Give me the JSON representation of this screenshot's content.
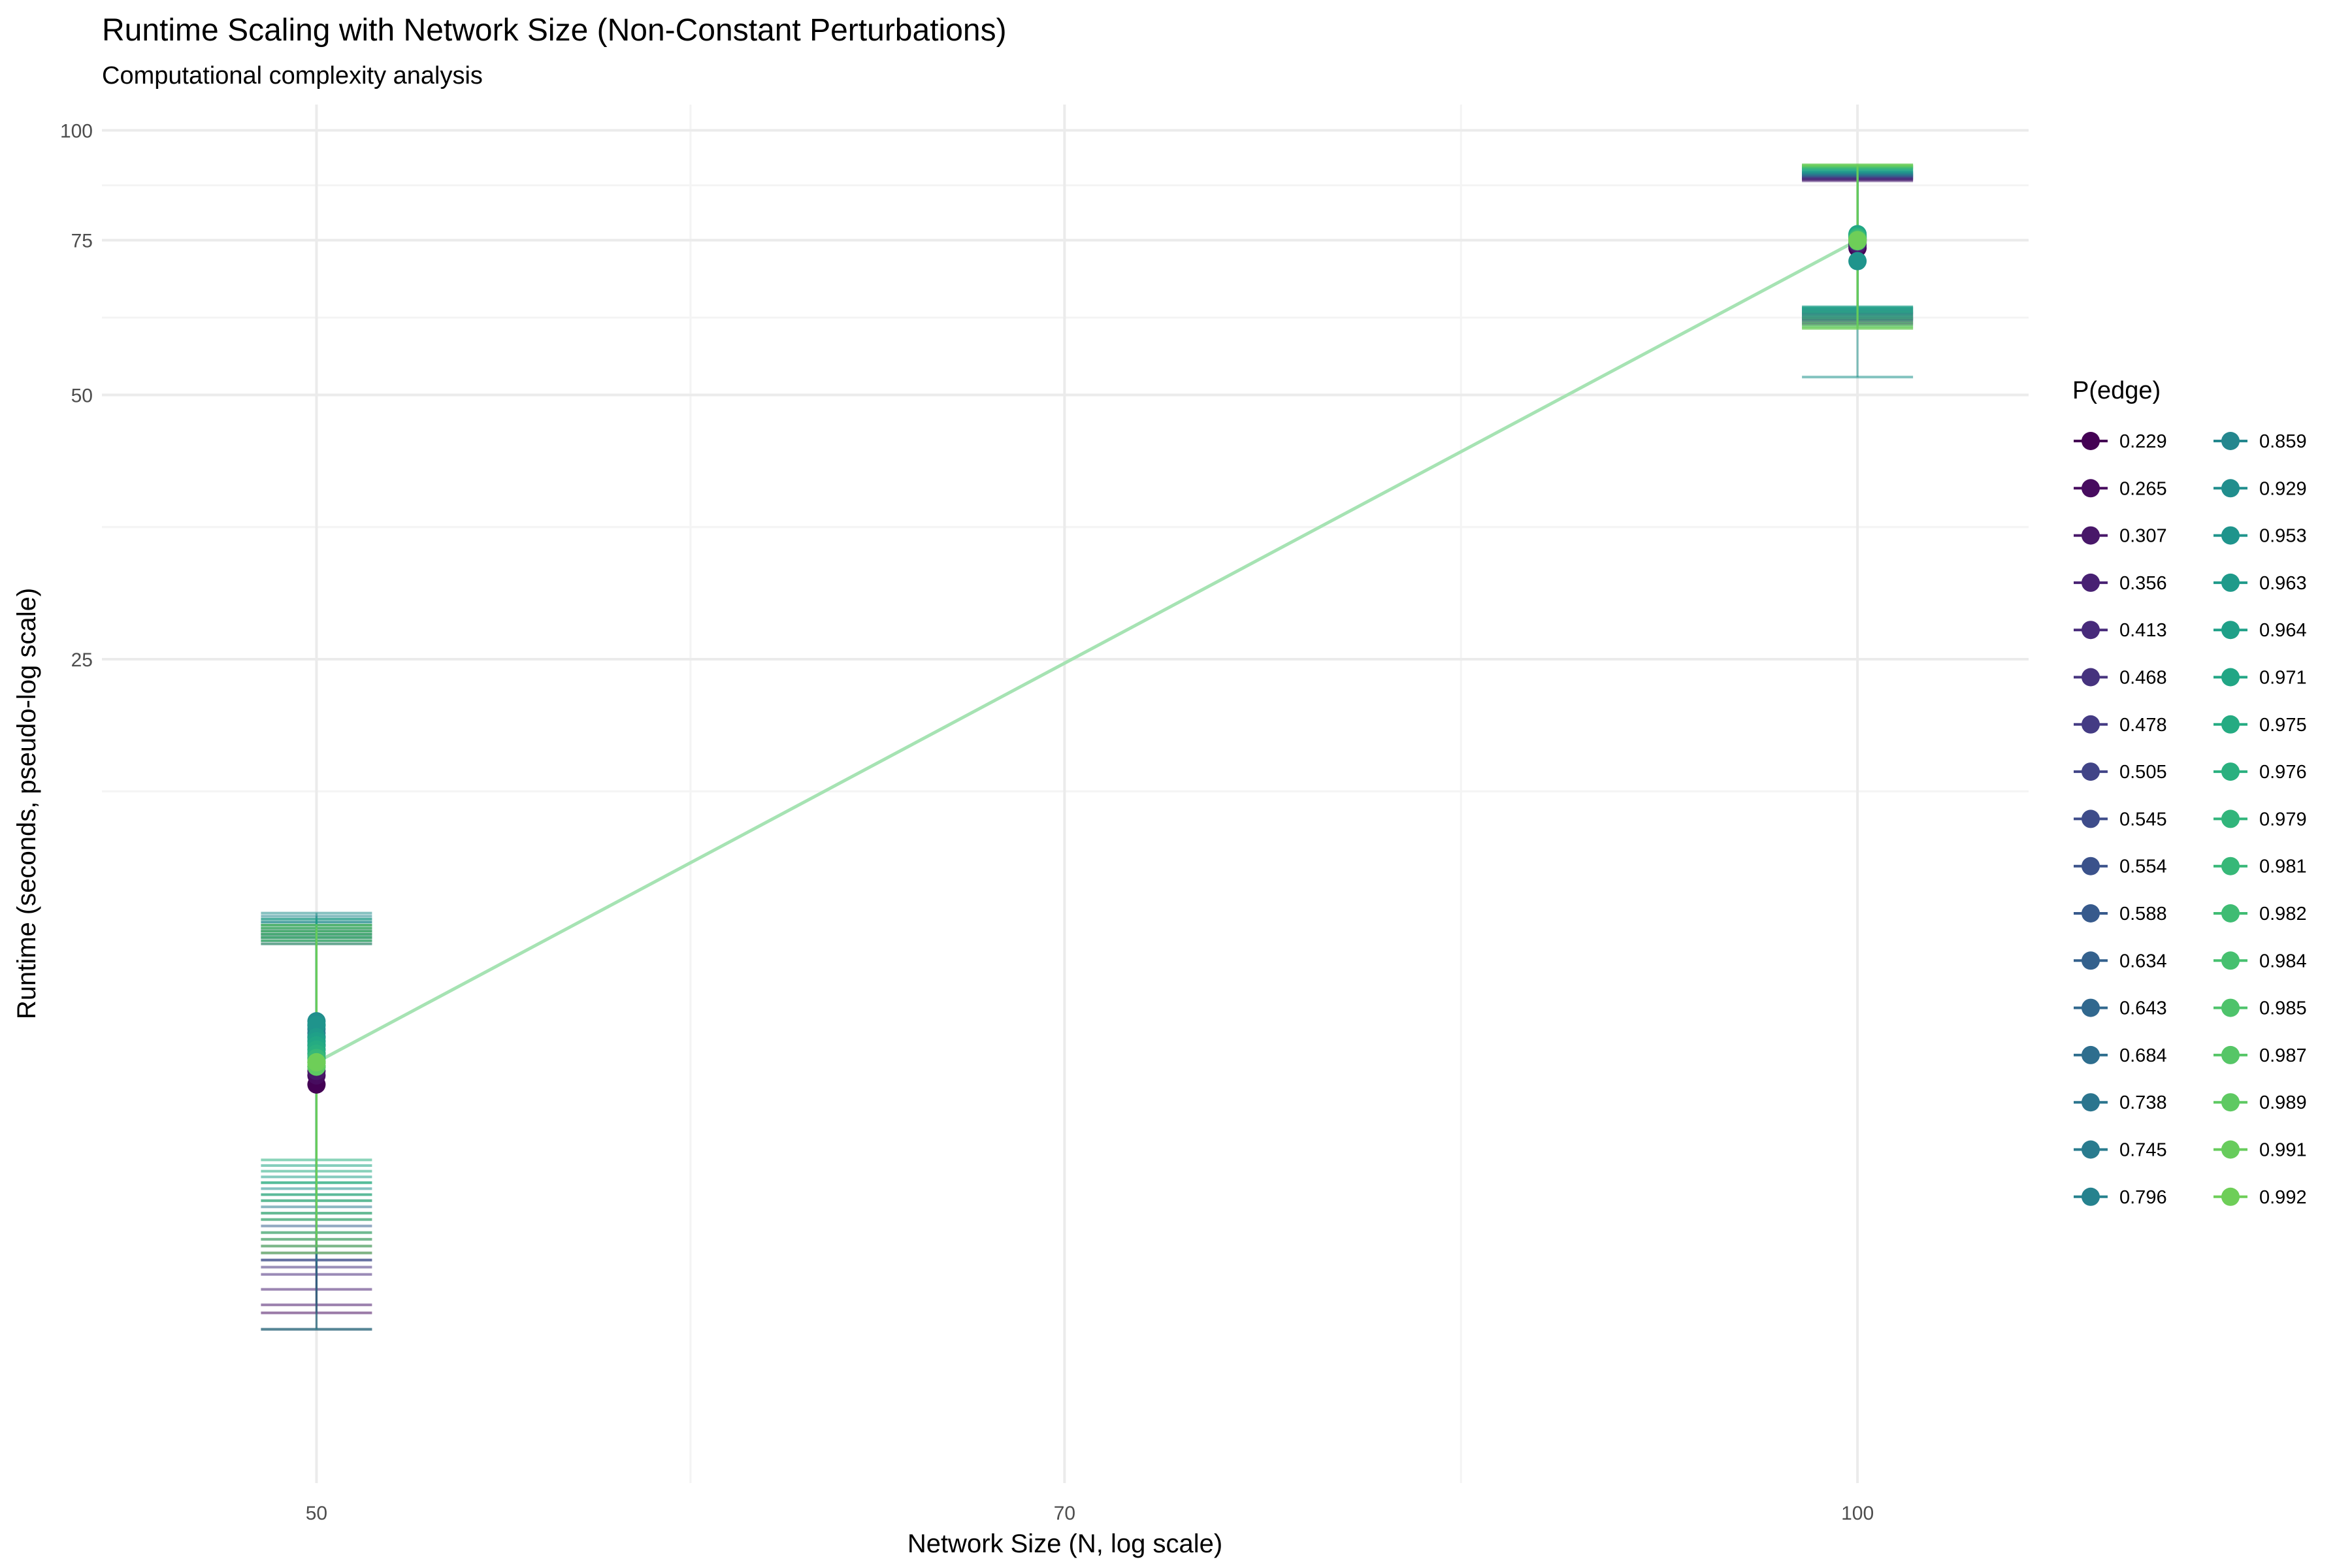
{
  "chart_data": {
    "type": "scatter",
    "title": "Runtime Scaling with Network Size (Non-Constant Perturbations)",
    "subtitle": "Computational complexity analysis",
    "xlabel": "Network Size (N, log scale)",
    "ylabel": "Runtime (seconds, pseudo-log scale)",
    "x_scale": "log",
    "y_scale": "pseudo-log",
    "x_ticks": [
      50,
      70,
      100
    ],
    "y_ticks": [
      25,
      50,
      75,
      100
    ],
    "legend_title": "P(edge)",
    "legend_position": "right",
    "grid": true,
    "trend_color": "#a6e3b3",
    "trend": [
      {
        "x": 50,
        "y": 8.6
      },
      {
        "x": 100,
        "y": 75
      }
    ],
    "series": [
      {
        "name": "0.229",
        "color": "#440154",
        "points": [
          {
            "x": 50,
            "y": 8.1,
            "ymin": 4.1,
            "ymax": 12.2
          },
          {
            "x": 100,
            "y": 73.5,
            "ymin": 60.2,
            "ymax": 88.4
          }
        ]
      },
      {
        "name": "0.265",
        "color": "#470c5f",
        "points": [
          {
            "x": 50,
            "y": 8.3,
            "ymin": 4.3,
            "ymax": 12.0
          },
          {
            "x": 100,
            "y": 74.0,
            "ymin": 60.5,
            "ymax": 87.9
          }
        ]
      },
      {
        "name": "0.307",
        "color": "#481769",
        "points": [
          {
            "x": 50,
            "y": 8.4,
            "ymin": 4.4,
            "ymax": 11.9
          },
          {
            "x": 100,
            "y": 74.2,
            "ymin": 61.0,
            "ymax": 88.1
          }
        ]
      },
      {
        "name": "0.356",
        "color": "#482173",
        "points": [
          {
            "x": 50,
            "y": 8.5,
            "ymin": 4.6,
            "ymax": 12.1
          },
          {
            "x": 100,
            "y": 74.5,
            "ymin": 60.8,
            "ymax": 87.6
          }
        ]
      },
      {
        "name": "0.413",
        "color": "#472a7a",
        "points": [
          {
            "x": 50,
            "y": 8.6,
            "ymin": 4.8,
            "ymax": 12.0
          },
          {
            "x": 100,
            "y": 74.8,
            "ymin": 61.5,
            "ymax": 88.0
          }
        ]
      },
      {
        "name": "0.468",
        "color": "#46337e",
        "points": [
          {
            "x": 50,
            "y": 8.7,
            "ymin": 4.9,
            "ymax": 11.8
          },
          {
            "x": 100,
            "y": 75.0,
            "ymin": 61.8,
            "ymax": 88.3
          }
        ]
      },
      {
        "name": "0.478",
        "color": "#443b84",
        "points": [
          {
            "x": 50,
            "y": 8.6,
            "ymin": 5.0,
            "ymax": 12.1
          },
          {
            "x": 100,
            "y": 74.7,
            "ymin": 61.2,
            "ymax": 88.6
          }
        ]
      },
      {
        "name": "0.505",
        "color": "#414487",
        "points": [
          {
            "x": 50,
            "y": 8.8,
            "ymin": 5.1,
            "ymax": 12.2
          },
          {
            "x": 100,
            "y": 75.2,
            "ymin": 61.9,
            "ymax": 88.5
          }
        ]
      },
      {
        "name": "0.545",
        "color": "#3e4c8a",
        "points": [
          {
            "x": 50,
            "y": 8.9,
            "ymin": 5.2,
            "ymax": 12.3
          },
          {
            "x": 100,
            "y": 75.0,
            "ymin": 60.9,
            "ymax": 88.7
          }
        ]
      },
      {
        "name": "0.554",
        "color": "#3b528b",
        "points": [
          {
            "x": 50,
            "y": 8.8,
            "ymin": 5.0,
            "ymax": 12.1
          },
          {
            "x": 100,
            "y": 75.1,
            "ymin": 61.1,
            "ymax": 88.9
          }
        ]
      },
      {
        "name": "0.588",
        "color": "#375a8c",
        "points": [
          {
            "x": 50,
            "y": 9.0,
            "ymin": 5.3,
            "ymax": 12.0
          },
          {
            "x": 100,
            "y": 75.3,
            "ymin": 61.4,
            "ymax": 89.0
          }
        ]
      },
      {
        "name": "0.634",
        "color": "#34618d",
        "points": [
          {
            "x": 50,
            "y": 9.1,
            "ymin": 5.5,
            "ymax": 12.4
          },
          {
            "x": 100,
            "y": 75.4,
            "ymin": 62.0,
            "ymax": 88.8
          }
        ]
      },
      {
        "name": "0.643",
        "color": "#31688e",
        "points": [
          {
            "x": 50,
            "y": 9.0,
            "ymin": 5.4,
            "ymax": 12.2
          },
          {
            "x": 100,
            "y": 75.2,
            "ymin": 61.7,
            "ymax": 89.1
          }
        ]
      },
      {
        "name": "0.684",
        "color": "#2e6e8e",
        "points": [
          {
            "x": 50,
            "y": 9.2,
            "ymin": 5.6,
            "ymax": 12.3
          },
          {
            "x": 100,
            "y": 75.5,
            "ymin": 62.2,
            "ymax": 89.2
          }
        ]
      },
      {
        "name": "0.738",
        "color": "#2b758e",
        "points": [
          {
            "x": 50,
            "y": 9.3,
            "ymin": 5.7,
            "ymax": 12.4
          },
          {
            "x": 100,
            "y": 75.6,
            "ymin": 62.4,
            "ymax": 89.0
          }
        ]
      },
      {
        "name": "0.745",
        "color": "#297b8e",
        "points": [
          {
            "x": 50,
            "y": 9.2,
            "ymin": 5.8,
            "ymax": 12.5
          },
          {
            "x": 100,
            "y": 75.4,
            "ymin": 62.1,
            "ymax": 89.3
          }
        ]
      },
      {
        "name": "0.796",
        "color": "#26828e",
        "points": [
          {
            "x": 50,
            "y": 9.4,
            "ymin": 5.9,
            "ymax": 12.6
          },
          {
            "x": 100,
            "y": 75.7,
            "ymin": 62.5,
            "ymax": 89.5
          }
        ]
      },
      {
        "name": "0.859",
        "color": "#24878e",
        "points": [
          {
            "x": 50,
            "y": 9.5,
            "ymin": 6.0,
            "ymax": 12.7
          },
          {
            "x": 100,
            "y": 75.8,
            "ymin": 62.6,
            "ymax": 89.4
          }
        ]
      },
      {
        "name": "0.929",
        "color": "#218e8d",
        "points": [
          {
            "x": 50,
            "y": 9.6,
            "ymin": 6.1,
            "ymax": 12.8
          },
          {
            "x": 100,
            "y": 76.0,
            "ymin": 62.8,
            "ymax": 89.6
          }
        ]
      },
      {
        "name": "0.953",
        "color": "#1f948c",
        "points": [
          {
            "x": 50,
            "y": 9.5,
            "ymin": 4.1,
            "ymax": 12.5
          },
          {
            "x": 100,
            "y": 71.0,
            "ymin": 52.4,
            "ymax": 89.7
          }
        ]
      },
      {
        "name": "0.963",
        "color": "#1f9a8a",
        "points": [
          {
            "x": 50,
            "y": 9.2,
            "ymin": 6.2,
            "ymax": 12.4
          },
          {
            "x": 100,
            "y": 75.9,
            "ymin": 62.9,
            "ymax": 89.8
          }
        ]
      },
      {
        "name": "0.964",
        "color": "#1fa088",
        "points": [
          {
            "x": 50,
            "y": 9.1,
            "ymin": 6.3,
            "ymax": 12.3
          },
          {
            "x": 100,
            "y": 76.1,
            "ymin": 63.0,
            "ymax": 90.0
          }
        ]
      },
      {
        "name": "0.971",
        "color": "#21a685",
        "points": [
          {
            "x": 50,
            "y": 9.0,
            "ymin": 6.5,
            "ymax": 12.6
          },
          {
            "x": 100,
            "y": 76.2,
            "ymin": 62.7,
            "ymax": 90.2
          }
        ]
      },
      {
        "name": "0.975",
        "color": "#25ab82",
        "points": [
          {
            "x": 50,
            "y": 8.9,
            "ymin": 6.4,
            "ymax": 12.2
          },
          {
            "x": 100,
            "y": 75.8,
            "ymin": 62.3,
            "ymax": 90.4
          }
        ]
      },
      {
        "name": "0.976",
        "color": "#2ab07f",
        "points": [
          {
            "x": 50,
            "y": 8.8,
            "ymin": 6.6,
            "ymax": 12.1
          },
          {
            "x": 100,
            "y": 75.6,
            "ymin": 62.0,
            "ymax": 90.5
          }
        ]
      },
      {
        "name": "0.979",
        "color": "#31b57b",
        "points": [
          {
            "x": 50,
            "y": 8.7,
            "ymin": 6.2,
            "ymax": 12.0
          },
          {
            "x": 100,
            "y": 75.5,
            "ymin": 61.6,
            "ymax": 90.6
          }
        ]
      },
      {
        "name": "0.981",
        "color": "#37b878",
        "points": [
          {
            "x": 50,
            "y": 8.7,
            "ymin": 6.0,
            "ymax": 11.9
          },
          {
            "x": 100,
            "y": 75.3,
            "ymin": 61.3,
            "ymax": 90.7
          }
        ]
      },
      {
        "name": "0.982",
        "color": "#3fbc73",
        "points": [
          {
            "x": 50,
            "y": 8.6,
            "ymin": 5.9,
            "ymax": 11.8
          },
          {
            "x": 100,
            "y": 75.2,
            "ymin": 61.0,
            "ymax": 90.8
          }
        ]
      },
      {
        "name": "0.984",
        "color": "#46c06f",
        "points": [
          {
            "x": 50,
            "y": 8.6,
            "ymin": 5.7,
            "ymax": 11.9
          },
          {
            "x": 100,
            "y": 75.1,
            "ymin": 60.6,
            "ymax": 90.9
          }
        ]
      },
      {
        "name": "0.985",
        "color": "#4ec36b",
        "points": [
          {
            "x": 50,
            "y": 8.5,
            "ymin": 5.6,
            "ymax": 12.0
          },
          {
            "x": 100,
            "y": 75.0,
            "ymin": 60.3,
            "ymax": 91.0
          }
        ]
      },
      {
        "name": "0.987",
        "color": "#56c667",
        "points": [
          {
            "x": 50,
            "y": 8.5,
            "ymin": 5.4,
            "ymax": 12.1
          },
          {
            "x": 100,
            "y": 74.9,
            "ymin": 60.0,
            "ymax": 91.1
          }
        ]
      },
      {
        "name": "0.989",
        "color": "#5ec962",
        "points": [
          {
            "x": 50,
            "y": 8.5,
            "ymin": 5.3,
            "ymax": 12.2
          },
          {
            "x": 100,
            "y": 74.8,
            "ymin": 59.8,
            "ymax": 91.2
          }
        ]
      },
      {
        "name": "0.991",
        "color": "#67cc5c",
        "points": [
          {
            "x": 50,
            "y": 8.6,
            "ymin": 5.2,
            "ymax": 12.3
          },
          {
            "x": 100,
            "y": 75.0,
            "ymin": 59.6,
            "ymax": 91.3
          }
        ]
      },
      {
        "name": "0.992",
        "color": "#6ece58",
        "points": [
          {
            "x": 50,
            "y": 8.6,
            "ymin": 5.1,
            "ymax": 12.4
          },
          {
            "x": 100,
            "y": 75.0,
            "ymin": 59.5,
            "ymax": 91.4
          }
        ]
      }
    ]
  }
}
